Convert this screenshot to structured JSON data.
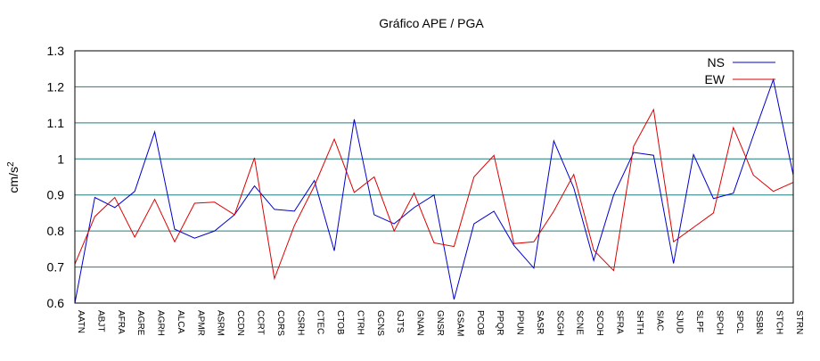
{
  "chart_data": {
    "type": "line",
    "title": "Gráfico  APE / PGA",
    "xlabel": "",
    "ylabel": "cm/s",
    "ylabel_superscript": "2",
    "ylim": [
      0.6,
      1.3
    ],
    "yticks": [
      "0.6",
      "0.7",
      "0.8",
      "0.9",
      "1",
      "1.1",
      "1.2",
      "1.3"
    ],
    "grid": "horizontal",
    "legend": "top-right",
    "categories": [
      "AATN",
      "ABJT",
      "AFRA",
      "AGRE",
      "AGRH",
      "ALCA",
      "APMR",
      "ASRM",
      "CCDN",
      "CCRT",
      "CORS",
      "CSRH",
      "CTEC",
      "CTOB",
      "CTRH",
      "GCNS",
      "GJTS",
      "GNAN",
      "GNSR",
      "GSAM",
      "PCOB",
      "PPQR",
      "PPUN",
      "SASR",
      "SCGH",
      "SCNE",
      "SCOH",
      "SFRA",
      "SHTH",
      "SIAC",
      "SJUD",
      "SLPF",
      "SPCH",
      "SPCL",
      "SSBN",
      "STCH",
      "STRN"
    ],
    "series": [
      {
        "name": "NS",
        "color": "#0000cc",
        "values": [
          0.6,
          0.893,
          0.865,
          0.91,
          1.075,
          0.805,
          0.78,
          0.8,
          0.845,
          0.925,
          0.86,
          0.855,
          0.94,
          0.745,
          1.11,
          0.845,
          0.82,
          0.865,
          0.9,
          0.61,
          0.82,
          0.855,
          0.76,
          0.697,
          1.05,
          0.92,
          0.718,
          0.9,
          1.018,
          1.01,
          0.71,
          1.012,
          0.89,
          0.905,
          1.065,
          1.22,
          0.955
        ]
      },
      {
        "name": "EW",
        "color": "#dd0000",
        "values": [
          0.708,
          0.84,
          0.893,
          0.783,
          0.888,
          0.77,
          0.877,
          0.88,
          0.845,
          1.003,
          0.668,
          0.815,
          0.925,
          1.055,
          0.907,
          0.95,
          0.8,
          0.905,
          0.767,
          0.757,
          0.95,
          1.01,
          0.765,
          0.77,
          0.855,
          0.957,
          0.747,
          0.69,
          1.035,
          1.137,
          0.77,
          0.81,
          0.85,
          1.087,
          0.955,
          0.91,
          0.935
        ]
      }
    ]
  }
}
